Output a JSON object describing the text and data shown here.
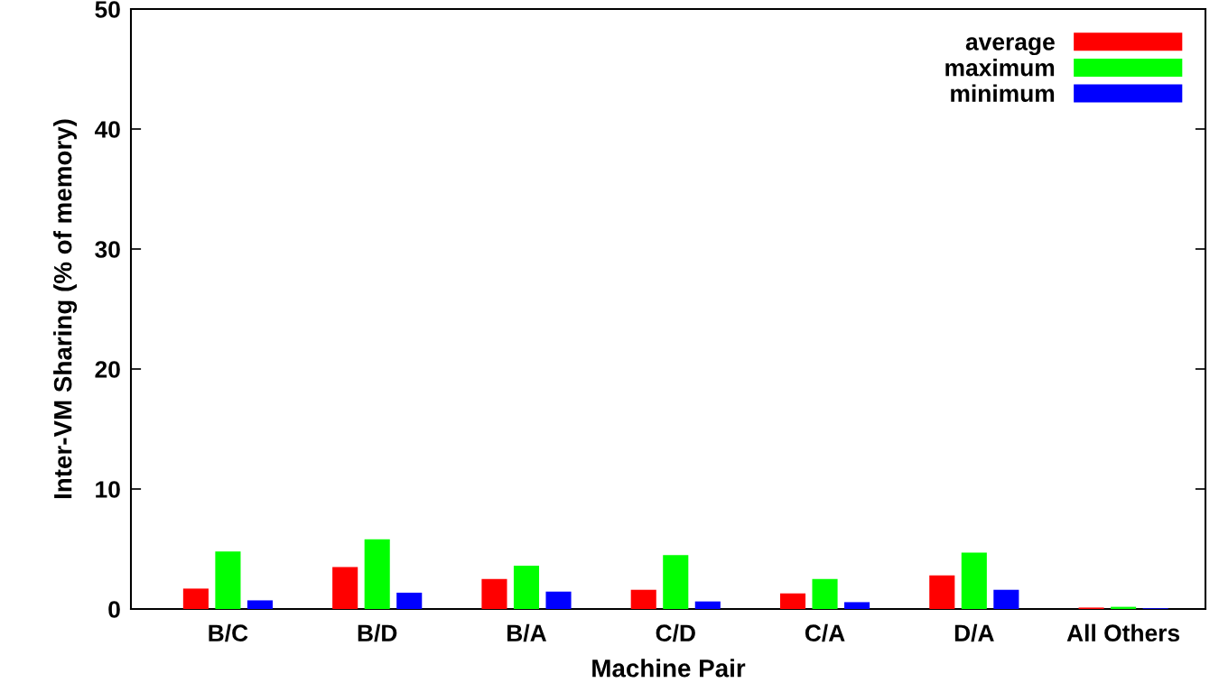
{
  "chart_data": {
    "type": "bar",
    "xlabel": "Machine Pair",
    "ylabel": "Inter-VM Sharing (% of memory)",
    "categories": [
      "B/C",
      "B/D",
      "B/A",
      "C/D",
      "C/A",
      "D/A",
      "All Others"
    ],
    "series": [
      {
        "name": "average",
        "color": "#ff0000",
        "values": [
          1.7,
          3.5,
          2.5,
          1.6,
          1.3,
          2.8,
          0.12
        ]
      },
      {
        "name": "maximum",
        "color": "#00ff00",
        "values": [
          4.8,
          5.8,
          3.6,
          4.5,
          2.5,
          4.7,
          0.18
        ]
      },
      {
        "name": "minimum",
        "color": "#0000ff",
        "values": [
          0.72,
          1.36,
          1.45,
          0.63,
          0.57,
          1.6,
          0.06
        ]
      }
    ],
    "ylim": [
      0,
      50
    ],
    "yticks": [
      0,
      10,
      20,
      30,
      40,
      50
    ],
    "grid": false,
    "legend": "top right"
  }
}
